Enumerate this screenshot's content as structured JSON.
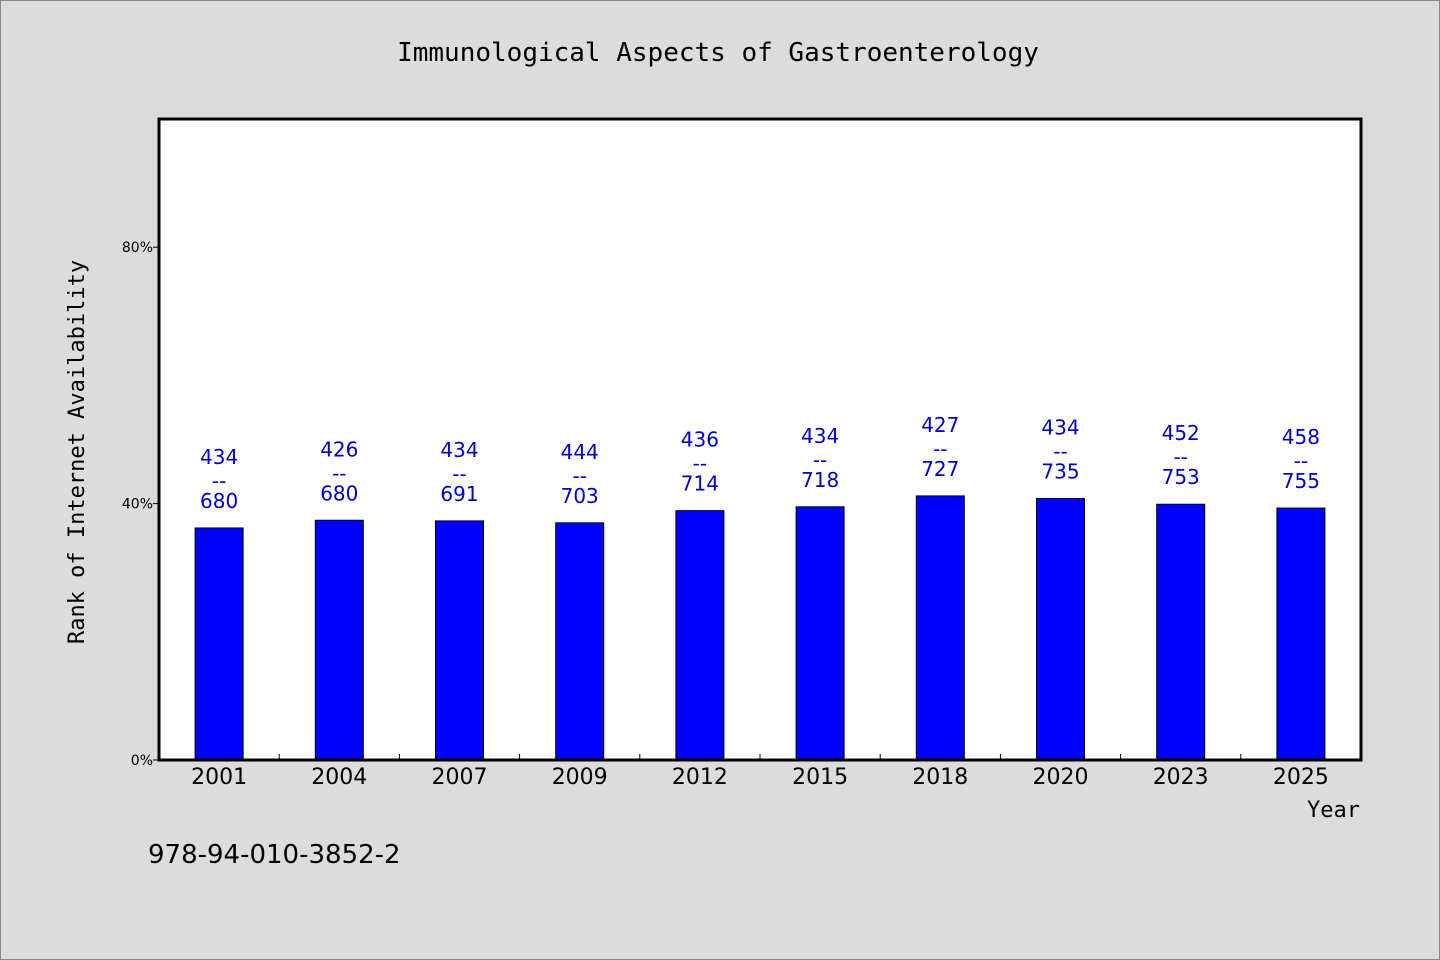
{
  "chart_data": {
    "type": "bar",
    "title": "Immunological Aspects of Gastroenterology",
    "xlabel": "Year",
    "ylabel": "Rank of Internet Availability",
    "categories": [
      "2001",
      "2004",
      "2007",
      "2009",
      "2012",
      "2015",
      "2018",
      "2020",
      "2023",
      "2025"
    ],
    "series": [
      {
        "values": [
          36.2,
          37.4,
          37.3,
          37.0,
          38.9,
          39.5,
          41.2,
          40.8,
          39.9,
          39.3
        ],
        "color": "#0000ff",
        "labels": [
          {
            "top": "434",
            "mid": "--",
            "bottom": "680"
          },
          {
            "top": "426",
            "mid": "--",
            "bottom": "680"
          },
          {
            "top": "434",
            "mid": "--",
            "bottom": "691"
          },
          {
            "top": "444",
            "mid": "--",
            "bottom": "703"
          },
          {
            "top": "436",
            "mid": "--",
            "bottom": "714"
          },
          {
            "top": "434",
            "mid": "--",
            "bottom": "718"
          },
          {
            "top": "427",
            "mid": "--",
            "bottom": "727"
          },
          {
            "top": "434",
            "mid": "--",
            "bottom": "735"
          },
          {
            "top": "452",
            "mid": "--",
            "bottom": "753"
          },
          {
            "top": "458",
            "mid": "--",
            "bottom": "755"
          }
        ]
      }
    ],
    "ylim": [
      0,
      100
    ],
    "yticks": [
      {
        "value": 0,
        "label": "0%"
      },
      {
        "value": 40,
        "label": "40%"
      },
      {
        "value": 80,
        "label": "80%"
      }
    ],
    "grid": false,
    "legend": "none",
    "label_color": "#0000cc"
  },
  "footer": {
    "code": "978-94-010-3852-2"
  }
}
